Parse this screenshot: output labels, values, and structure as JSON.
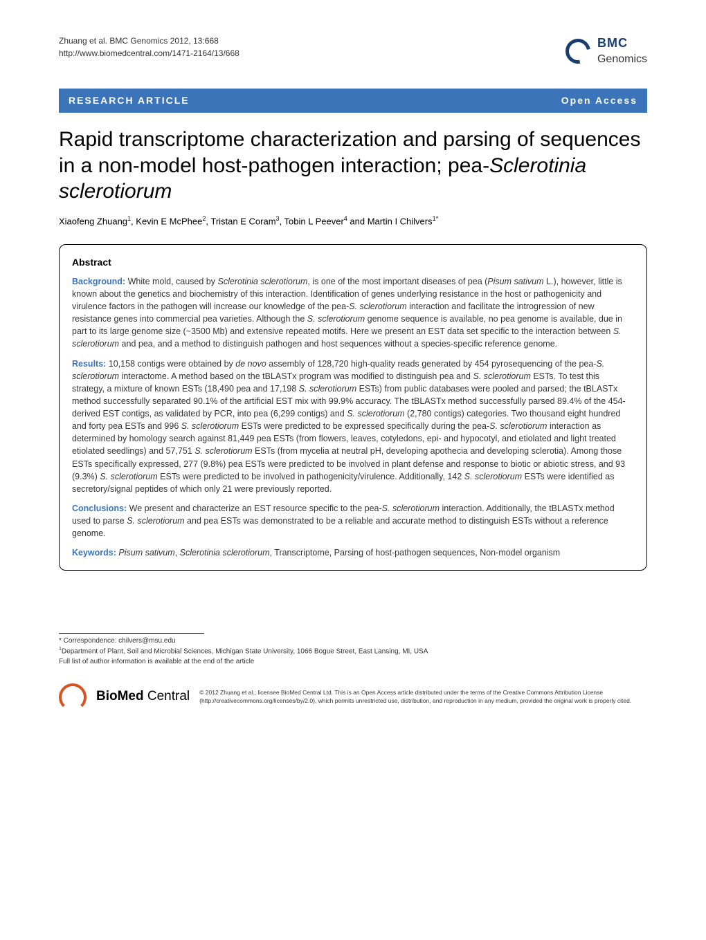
{
  "header": {
    "citation_line1": "Zhuang et al. BMC Genomics 2012, 13:668",
    "citation_line2": "http://www.biomedcentral.com/1471-2164/13/668",
    "logo_top": "BMC",
    "logo_bottom": "Genomics",
    "logo_border_color": "#193e6c"
  },
  "bar": {
    "left": "RESEARCH ARTICLE",
    "right": "Open Access",
    "bg_color": "#3b74b9"
  },
  "title_parts": {
    "p1": "Rapid transcriptome characterization and parsing of sequences in a non-model host-pathogen interaction; pea-",
    "p2": "Sclerotinia sclerotiorum"
  },
  "authors_html": "Xiaofeng Zhuang<sup>1</sup>, Kevin E McPhee<sup>2</sup>, Tristan E Coram<sup>3</sup>, Tobin L Peever<sup>4</sup> and Martin I Chilvers<sup>1*</sup>",
  "abstract": {
    "heading": "Abstract",
    "background": "<strong>Background:</strong> White mold, caused by <em>Sclerotinia sclerotiorum</em>, is one of the most important diseases of pea (<em>Pisum sativum</em> L.), however, little is known about the genetics and biochemistry of this interaction. Identification of genes underlying resistance in the host or pathogenicity and virulence factors in the pathogen will increase our knowledge of the pea-<em>S. sclerotiorum</em> interaction and facilitate the introgression of new resistance genes into commercial pea varieties. Although the <em>S. sclerotiorum</em> genome sequence is available, no pea genome is available, due in part to its large genome size (~3500 Mb) and extensive repeated motifs. Here we present an EST data set specific to the interaction between <em>S. sclerotiorum</em> and pea, and a method to distinguish pathogen and host sequences without a species-specific reference genome.",
    "results": "<strong>Results:</strong> 10,158 contigs were obtained by <em>de novo</em> assembly of 128,720 high-quality reads generated by 454 pyrosequencing of the pea-<em>S. sclerotiorum</em> interactome. A method based on the tBLASTx program was modified to distinguish pea and <em>S. sclerotiorum</em> ESTs. To test this strategy, a mixture of known ESTs (18,490 pea and 17,198 <em>S. sclerotiorum</em> ESTs) from public databases were pooled and parsed; the tBLASTx method successfully separated 90.1% of the artificial EST mix with 99.9% accuracy. The tBLASTx method successfully parsed 89.4% of the 454-derived EST contigs, as validated by PCR, into pea (6,299 contigs) and <em>S. sclerotiorum</em> (2,780 contigs) categories. Two thousand eight hundred and forty pea ESTs and 996 <em>S. sclerotiorum</em> ESTs were predicted to be expressed specifically during the pea-<em>S. sclerotiorum</em> interaction as determined by homology search against 81,449 pea ESTs (from flowers, leaves, cotyledons, epi- and hypocotyl, and etiolated and light treated etiolated seedlings) and 57,751 <em>S. sclerotiorum</em> ESTs (from mycelia at neutral pH, developing apothecia and developing sclerotia). Among those ESTs specifically expressed, 277 (9.8%) pea ESTs were predicted to be involved in plant defense and response to biotic or abiotic stress, and 93 (9.3%) <em>S. sclerotiorum</em> ESTs were predicted to be involved in pathogenicity/virulence. Additionally, 142 <em>S. sclerotiorum</em> ESTs were identified as secretory/signal peptides of which only 21 were previously reported.",
    "conclusions": "<strong>Conclusions:</strong> We present and characterize an EST resource specific to the pea-<em>S. sclerotiorum</em> interaction. Additionally, the tBLASTx method used to parse <em>S. sclerotiorum</em> and pea ESTs was demonstrated to be a reliable and accurate method to distinguish ESTs without a reference genome.",
    "keywords": "<strong>Keywords:</strong> <em>Pisum sativum</em>, <em>Sclerotinia sclerotiorum</em>, Transcriptome, Parsing of host-pathogen sequences, Non-model organism"
  },
  "footer": {
    "correspondence": "* Correspondence: chilvers@msu.edu",
    "affiliation": "<sup>1</sup>Department of Plant, Soil and Microbial Sciences, Michigan State University, 1066 Bogue Street, East Lansing, MI, USA",
    "full_list": "Full list of author information is available at the end of the article",
    "biomed_bold": "BioMed",
    "biomed_light": " Central",
    "license": "© 2012 Zhuang et al.; licensee BioMed Central Ltd. This is an Open Access article distributed under the terms of the Creative Commons Attribution License (http://creativecommons.org/licenses/by/2.0), which permits unrestricted use, distribution, and reproduction in any medium, provided the original work is properly cited."
  }
}
